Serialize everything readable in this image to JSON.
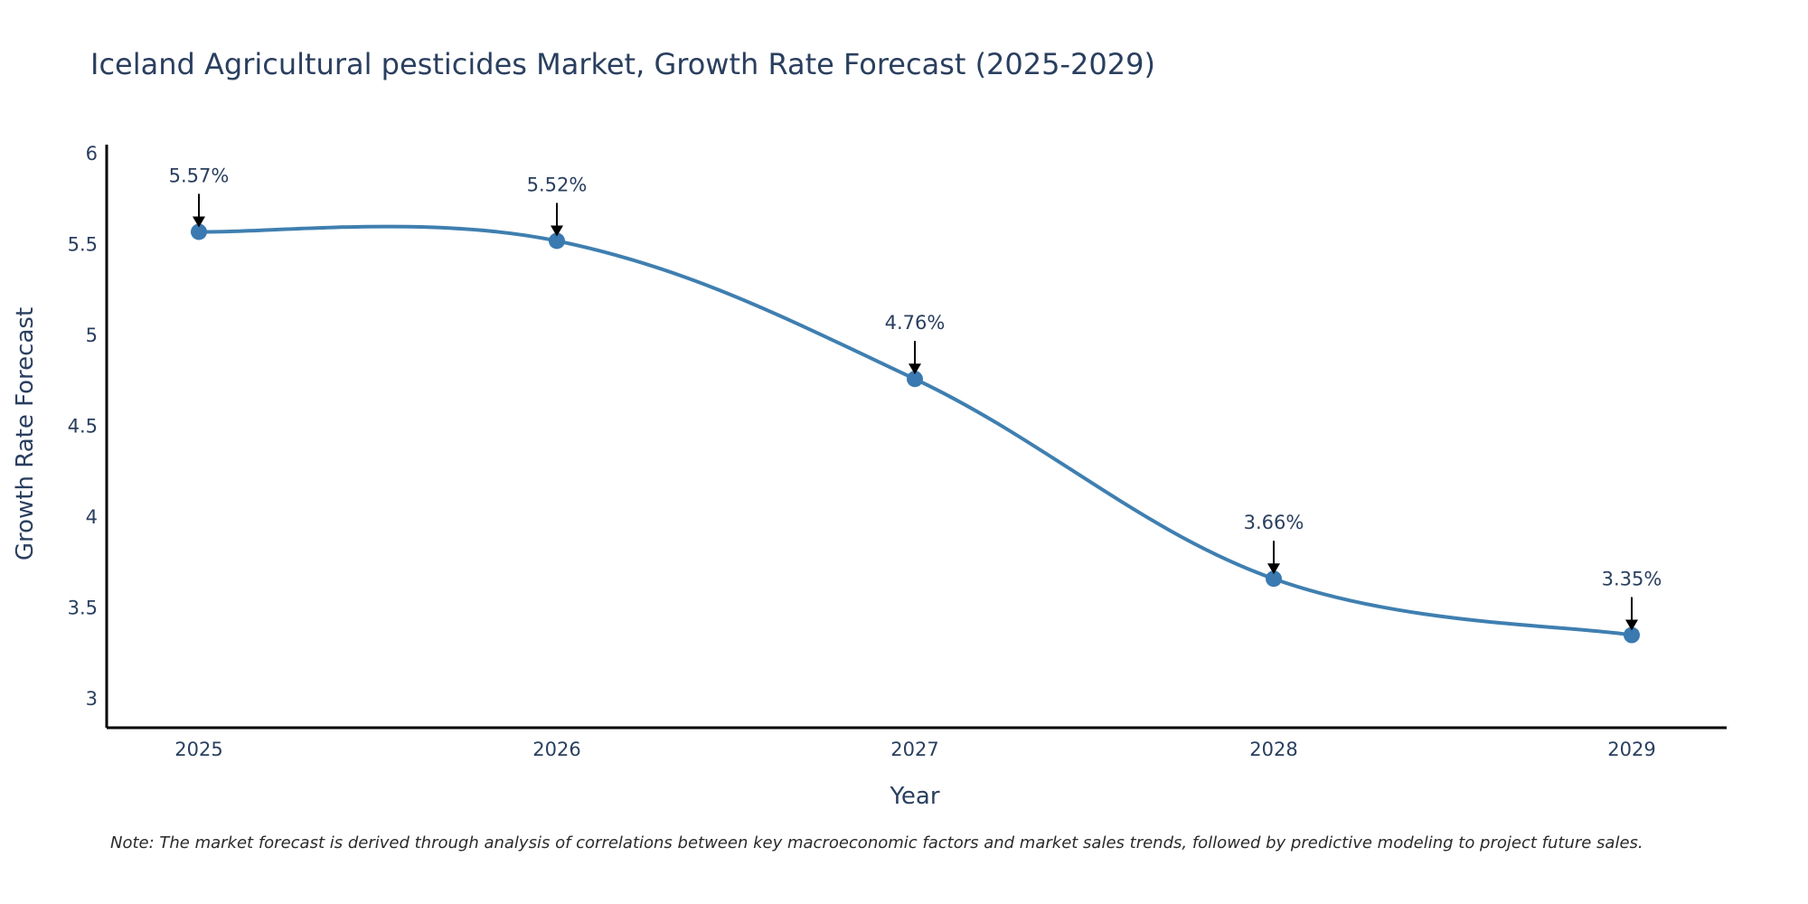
{
  "chart_data": {
    "type": "line",
    "title": "Iceland Agricultural pesticides Market, Growth Rate Forecast (2025-2029)",
    "xlabel": "Year",
    "ylabel": "Growth Rate Forecast",
    "categories": [
      "2025",
      "2026",
      "2027",
      "2028",
      "2029"
    ],
    "series": [
      {
        "name": "Growth Rate Forecast",
        "values": [
          5.57,
          5.52,
          4.76,
          3.66,
          3.35
        ],
        "labels": [
          "5.57%",
          "5.52%",
          "4.76%",
          "3.66%",
          "3.35%"
        ]
      }
    ],
    "yticks": [
      3,
      3.5,
      4,
      4.5,
      5,
      5.5,
      6
    ],
    "ytick_labels": [
      "3",
      "3.5",
      "4",
      "4.5",
      "5",
      "5.5",
      "6"
    ],
    "ylim": [
      2.84,
      6.05
    ],
    "grid": false,
    "line_shape": "spline",
    "colors": {
      "line": "#3f7fb0",
      "marker": "#3a7ab0",
      "arrow": "#000000",
      "axis": "#000000",
      "text": "#2a3f5f"
    },
    "note": "Note: The market forecast is derived through analysis of correlations between key macroeconomic factors and market sales trends, followed by predictive modeling to project future sales."
  }
}
